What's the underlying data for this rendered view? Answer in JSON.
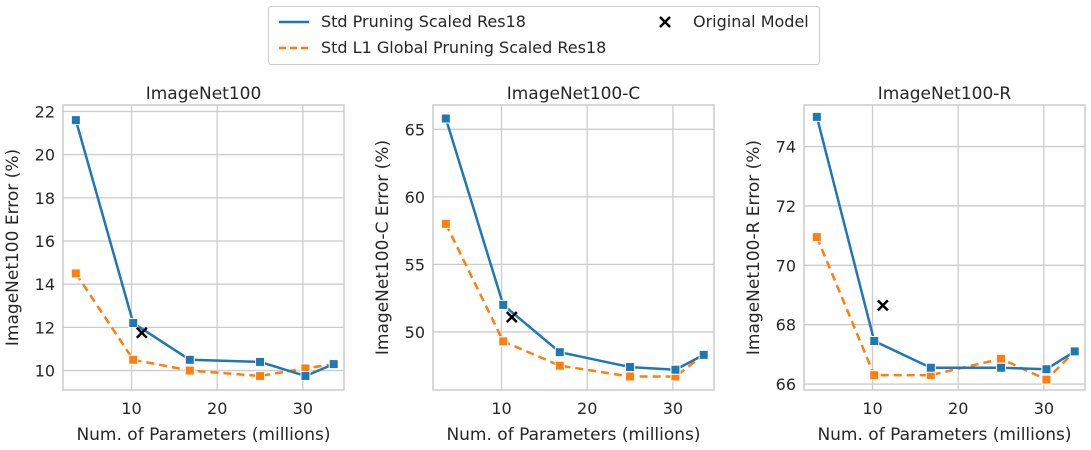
{
  "legend": {
    "items": [
      {
        "label": "Std Pruning Scaled Res18",
        "marker": "line-solid"
      },
      {
        "label": "Std L1 Global Pruning Scaled Res18",
        "marker": "line-dashed"
      },
      {
        "label": "Original Model",
        "marker": "x"
      }
    ],
    "placement": "top-center"
  },
  "colors": {
    "std": "#1f77b4",
    "l1": "#ff7f0e",
    "original": "#000000",
    "grid": "#cccccc"
  },
  "chart_data": [
    {
      "type": "line",
      "title": "ImageNet100",
      "xlabel": "Num. of Parameters (millions)",
      "ylabel": "ImageNet100 Error (%)",
      "xlim": [
        2.0,
        34.8
      ],
      "ylim": [
        9.1,
        22.3
      ],
      "xticks": [
        10,
        20,
        30
      ],
      "yticks": [
        10,
        12,
        14,
        16,
        18,
        20,
        22
      ],
      "grid": true,
      "series": [
        {
          "name": "Std Pruning Scaled Res18",
          "style": "solid",
          "x": [
            3.5,
            10.2,
            16.8,
            25.0,
            30.3,
            33.6
          ],
          "y": [
            21.6,
            12.2,
            10.5,
            10.4,
            9.75,
            10.3
          ]
        },
        {
          "name": "Std L1 Global Pruning Scaled Res18",
          "style": "dashed",
          "x": [
            3.5,
            10.2,
            16.8,
            25.0,
            30.3,
            33.6
          ],
          "y": [
            14.5,
            10.5,
            10.0,
            9.75,
            10.1,
            10.3
          ]
        }
      ],
      "original": {
        "name": "Original Model",
        "x": 11.2,
        "y": 11.75
      }
    },
    {
      "type": "line",
      "title": "ImageNet100-C",
      "xlabel": "Num. of Parameters (millions)",
      "ylabel": "ImageNet100-C Error (%)",
      "xlim": [
        2.0,
        34.8
      ],
      "ylim": [
        45.7,
        66.8
      ],
      "xticks": [
        10,
        20,
        30
      ],
      "yticks": [
        50,
        55,
        60,
        65
      ],
      "grid": true,
      "series": [
        {
          "name": "Std Pruning Scaled Res18",
          "style": "solid",
          "x": [
            3.5,
            10.2,
            16.8,
            25.0,
            30.3,
            33.6
          ],
          "y": [
            65.8,
            52.0,
            48.5,
            47.4,
            47.2,
            48.3
          ]
        },
        {
          "name": "Std L1 Global Pruning Scaled Res18",
          "style": "dashed",
          "x": [
            3.5,
            10.2,
            16.8,
            25.0,
            30.3,
            33.6
          ],
          "y": [
            58.0,
            49.3,
            47.5,
            46.7,
            46.7,
            48.3
          ]
        }
      ],
      "original": {
        "name": "Original Model",
        "x": 11.2,
        "y": 51.1
      }
    },
    {
      "type": "line",
      "title": "ImageNet100-R",
      "xlabel": "Num. of Parameters (millions)",
      "ylabel": "ImageNet100-R Error (%)",
      "xlim": [
        2.0,
        34.8
      ],
      "ylim": [
        65.8,
        75.4
      ],
      "xticks": [
        10,
        20,
        30
      ],
      "yticks": [
        66,
        68,
        70,
        72,
        74
      ],
      "grid": true,
      "series": [
        {
          "name": "Std Pruning Scaled Res18",
          "style": "solid",
          "x": [
            3.5,
            10.2,
            16.8,
            25.0,
            30.3,
            33.6
          ],
          "y": [
            75.0,
            67.45,
            66.55,
            66.55,
            66.5,
            67.1
          ]
        },
        {
          "name": "Std L1 Global Pruning Scaled Res18",
          "style": "dashed",
          "x": [
            3.5,
            10.2,
            16.8,
            25.0,
            30.3,
            33.6
          ],
          "y": [
            70.95,
            66.3,
            66.3,
            66.85,
            66.15,
            67.1
          ]
        }
      ],
      "original": {
        "name": "Original Model",
        "x": 11.2,
        "y": 68.65
      }
    }
  ]
}
